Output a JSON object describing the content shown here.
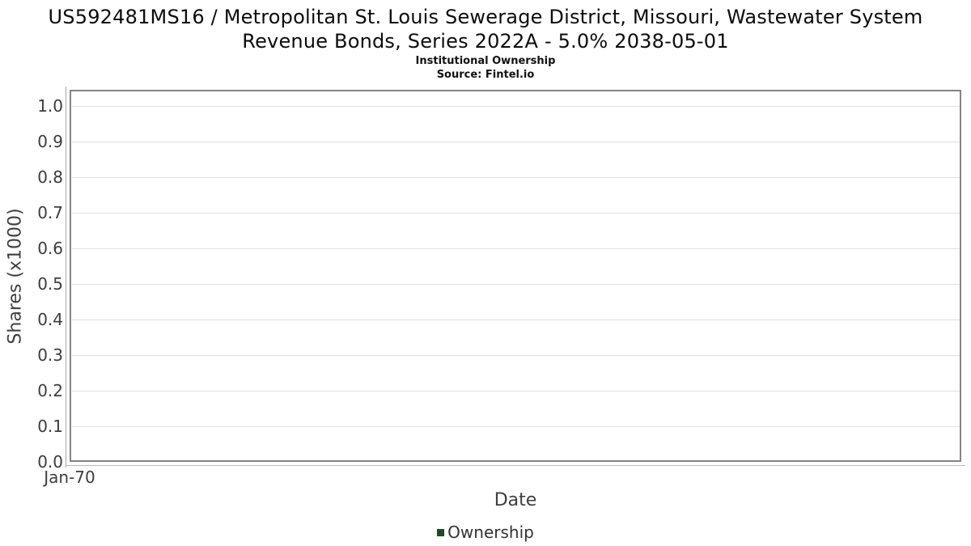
{
  "chart_data": {
    "type": "line",
    "title": "US592481MS16 / Metropolitan St. Louis Sewerage District, Missouri, Wastewater System Revenue Bonds, Series 2022A - 5.0% 2038-05-01",
    "subtitle": "Institutional Ownership",
    "source": "Source: Fintel.io",
    "xlabel": "Date",
    "ylabel": "Shares (x1000)",
    "xticks": [
      "Jan-70"
    ],
    "yticks": [
      "0.0",
      "0.1",
      "0.2",
      "0.3",
      "0.4",
      "0.5",
      "0.6",
      "0.7",
      "0.8",
      "0.9",
      "1.0"
    ],
    "ylim": [
      0,
      1.045
    ],
    "grid": "horizontal",
    "legend_position": "bottom",
    "series": [
      {
        "name": "Ownership",
        "color": "#1e4a23",
        "x": [],
        "values": []
      }
    ]
  },
  "colors": {
    "grid": "#e0e0e0",
    "plot_border": "#848484",
    "tick_text": "#3d3d3d",
    "axis_title_text": "#3f3f3f",
    "legend_marker": "#1e4a23"
  }
}
